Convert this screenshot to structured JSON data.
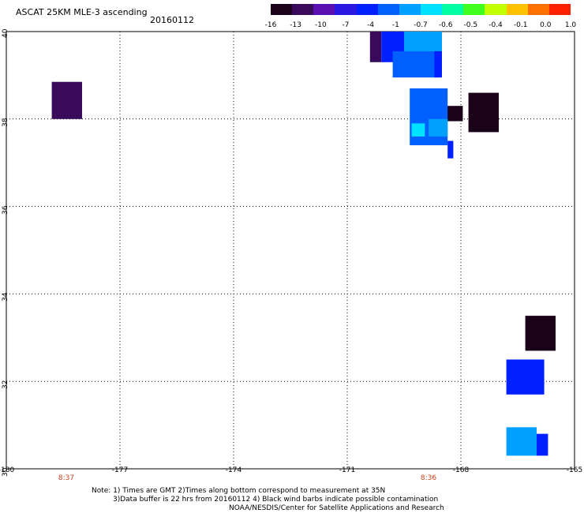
{
  "header": {
    "title": "ASCAT 25KM MLE-3 ascending",
    "date": "20160112"
  },
  "colorbar": {
    "labels": [
      "-16",
      "-13",
      "-10",
      "-7",
      "-4",
      "-1",
      "-0.7",
      "-0.6",
      "-0.5",
      "-0.4",
      "-0.1",
      "0.0",
      "1.0"
    ],
    "colors": [
      "#1a0318",
      "#3a0a5a",
      "#5a10b0",
      "#2a18e0",
      "#0020ff",
      "#0060ff",
      "#00a0ff",
      "#00e0ff",
      "#00ffa0",
      "#40ff20",
      "#c0ff00",
      "#ffc000",
      "#ff7000",
      "#ff2000"
    ]
  },
  "axes": {
    "lon_labels": [
      "-180",
      "-177",
      "-174",
      "-171",
      "-168",
      "-165"
    ],
    "lat_labels": [
      "30",
      "32",
      "34",
      "36",
      "38",
      "40"
    ],
    "time_labels": [
      "8:37",
      "8:36"
    ]
  },
  "map_data": {
    "lon_range": [
      -180,
      -165
    ],
    "lat_range": [
      30,
      40
    ],
    "cells": [
      {
        "lon": -178.8,
        "lat": 38.0,
        "w": 0.8,
        "h": 0.85,
        "color": "#3a0a5a"
      },
      {
        "lon": -170.4,
        "lat": 39.3,
        "w": 0.3,
        "h": 0.7,
        "color": "#3a0a5a"
      },
      {
        "lon": -170.1,
        "lat": 39.3,
        "w": 0.6,
        "h": 0.7,
        "color": "#0020ff"
      },
      {
        "lon": -169.5,
        "lat": 39.3,
        "w": 1.0,
        "h": 0.7,
        "color": "#00a0ff"
      },
      {
        "lon": -169.8,
        "lat": 38.95,
        "w": 1.2,
        "h": 0.6,
        "color": "#0060ff"
      },
      {
        "lon": -168.7,
        "lat": 38.95,
        "w": 0.2,
        "h": 0.6,
        "color": "#0020ff"
      },
      {
        "lon": -168.75,
        "lat": 37.95,
        "w": 0.8,
        "h": 0.35,
        "color": "#1a0318"
      },
      {
        "lon": -167.8,
        "lat": 37.7,
        "w": 0.8,
        "h": 0.9,
        "color": "#1a0318"
      },
      {
        "lon": -169.35,
        "lat": 37.4,
        "w": 1.0,
        "h": 1.3,
        "color": "#0060ff"
      },
      {
        "lon": -169.3,
        "lat": 37.6,
        "w": 0.35,
        "h": 0.3,
        "color": "#00e0ff"
      },
      {
        "lon": -168.85,
        "lat": 37.6,
        "w": 0.5,
        "h": 0.4,
        "color": "#00a0ff"
      },
      {
        "lon": -168.35,
        "lat": 37.1,
        "w": 0.15,
        "h": 0.4,
        "color": "#0020ff"
      },
      {
        "lon": -166.3,
        "lat": 32.7,
        "w": 0.8,
        "h": 0.8,
        "color": "#1a0318"
      },
      {
        "lon": -166.8,
        "lat": 31.7,
        "w": 1.0,
        "h": 0.8,
        "color": "#0020ff"
      },
      {
        "lon": -166.8,
        "lat": 30.3,
        "w": 0.8,
        "h": 0.65,
        "color": "#00a0ff"
      },
      {
        "lon": -166.0,
        "lat": 30.3,
        "w": 0.3,
        "h": 0.5,
        "color": "#0020ff"
      }
    ]
  },
  "notes": {
    "line1": "Note: 1) Times are GMT 2)Times along bottom correspond to measurement at 35N",
    "line2": "3)Data buffer is 22 hrs from 20160112 4) Black wind barbs indicate possible contamination",
    "line3": "NOAA/NESDIS/Center for Satellite Applications and Research"
  }
}
